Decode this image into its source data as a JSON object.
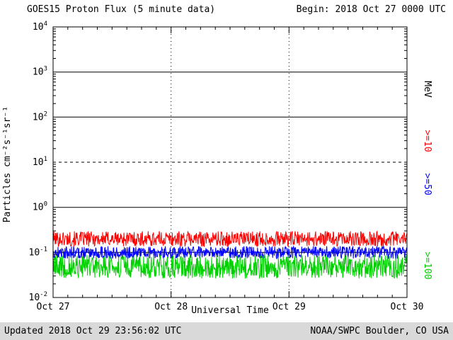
{
  "header": {
    "title": "GOES15 Proton Flux (5 minute data)",
    "begin_label": "Begin: 2018 Oct 27 0000 UTC"
  },
  "axes": {
    "y_label": "Particles cm⁻²s⁻¹sr⁻¹",
    "x_label": "Universal Time",
    "right_unit": "MeV"
  },
  "footer": {
    "updated": "Updated 2018 Oct 29 23:56:02 UTC",
    "credit": "NOAA/SWPC Boulder, CO USA"
  },
  "colors": {
    "ge10": "#ff0000",
    "ge50": "#0000ff",
    "ge100": "#00d000",
    "frame": "#000000",
    "footer_bg": "#d9d9d9"
  },
  "chart_data": {
    "type": "line",
    "title": "GOES15 Proton Flux (5 minute data)",
    "xlabel": "Universal Time",
    "ylabel": "Particles cm-2 s-1 sr-1",
    "x_tick_labels": [
      "Oct 27",
      "Oct 28",
      "Oct 29",
      "Oct 30"
    ],
    "x_range_days": 3,
    "points_per_day": 288,
    "y_scale": "log10",
    "y_log_min": -2,
    "y_log_max": 4,
    "y_tick_exponents": [
      4,
      3,
      2,
      1,
      0,
      -1,
      -2
    ],
    "gridlines": {
      "solid_decades": [
        3,
        2,
        0,
        -1
      ],
      "dashed_decades": [
        1
      ],
      "vertical_dashed_days": [
        1,
        2
      ]
    },
    "legend_position": "right",
    "series": [
      {
        "name": ">=10",
        "unit": "MeV",
        "color": "#ff0000",
        "approx_baseline": 0.2,
        "approx_range": [
          0.13,
          0.32
        ],
        "log10_noise": 0.17,
        "seed": 101
      },
      {
        "name": ">=50",
        "unit": "MeV",
        "color": "#0000ff",
        "approx_baseline": 0.1,
        "approx_range": [
          0.07,
          0.14
        ],
        "log10_noise": 0.14,
        "seed": 202
      },
      {
        "name": ">=100",
        "unit": "MeV",
        "color": "#00d000",
        "approx_baseline": 0.048,
        "approx_range": [
          0.026,
          0.09
        ],
        "log10_noise": 0.26,
        "seed": 303
      }
    ]
  }
}
